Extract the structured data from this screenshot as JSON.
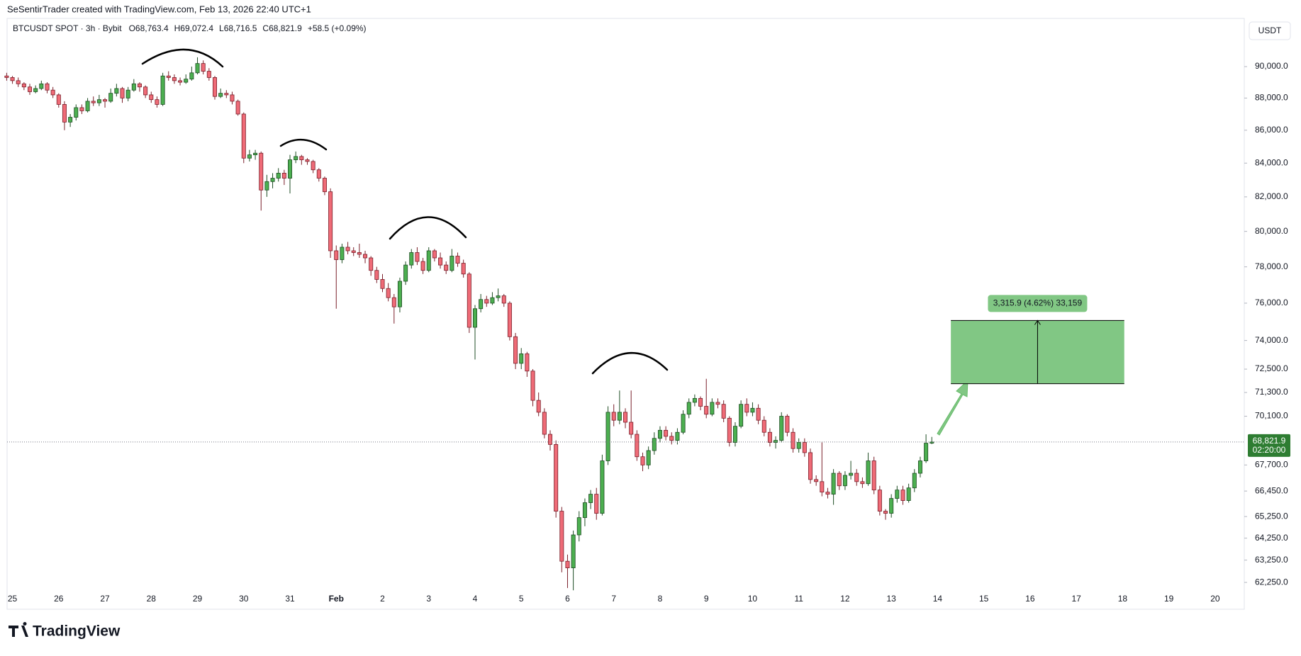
{
  "header": {
    "credit": "SeSentirTrader created with TradingView.com, Feb 13, 2026 22:40 UTC+1",
    "brand": "TradingView",
    "currency_button": "USDT"
  },
  "chart_data": {
    "type": "candlestick",
    "title": "BTCUSDT SPOT · 3h · Bybit",
    "legend_values": [
      "O68,763.4",
      "H69,072.4",
      "L68,716.5",
      "C68,821.9",
      "+58.5 (+0.09%)"
    ],
    "log_scale": true,
    "up_color": "#4caf50",
    "down_color": "#ef6b77",
    "ylim": [
      61900,
      93000
    ],
    "yticks": [
      {
        "value": 90000,
        "label": "90,000.0"
      },
      {
        "value": 88000,
        "label": "88,000.0"
      },
      {
        "value": 86000,
        "label": "86,000.0"
      },
      {
        "value": 84000,
        "label": "84,000.0"
      },
      {
        "value": 82000,
        "label": "82,000.0"
      },
      {
        "value": 80000,
        "label": "80,000.0"
      },
      {
        "value": 78000,
        "label": "78,000.0"
      },
      {
        "value": 76000,
        "label": "76,000.0"
      },
      {
        "value": 74000,
        "label": "74,000.0"
      },
      {
        "value": 72500,
        "label": "72,500.0"
      },
      {
        "value": 71300,
        "label": "71,300.0"
      },
      {
        "value": 70100,
        "label": "70,100.0"
      },
      {
        "value": 67700,
        "label": "67,700.0"
      },
      {
        "value": 66450,
        "label": "66,450.0"
      },
      {
        "value": 65250,
        "label": "65,250.0"
      },
      {
        "value": 64250,
        "label": "64,250.0"
      },
      {
        "value": 63250,
        "label": "63,250.0"
      },
      {
        "value": 62250,
        "label": "62,250.0"
      }
    ],
    "categories": [
      "25",
      "26",
      "27",
      "28",
      "29",
      "30",
      "31",
      "Feb",
      "2",
      "3",
      "4",
      "5",
      "6",
      "7",
      "8",
      "9",
      "10",
      "11",
      "12",
      "13",
      "14",
      "15",
      "16",
      "17",
      "18",
      "19",
      "20"
    ],
    "last_price_label": "68,821.9",
    "countdown": "02:20:00",
    "measure": {
      "from": 71750,
      "to": 75065.9,
      "label": "3,315.9 (4.62%) 33,159",
      "color": "#81c784"
    },
    "candles": [
      [
        89400,
        89600,
        89100,
        89300
      ],
      [
        89300,
        89400,
        88900,
        89100
      ],
      [
        89100,
        89300,
        88700,
        88900
      ],
      [
        88900,
        89000,
        88500,
        88700
      ],
      [
        88700,
        88900,
        88200,
        88400
      ],
      [
        88400,
        88800,
        88300,
        88600
      ],
      [
        88600,
        89100,
        88500,
        88900
      ],
      [
        88900,
        89000,
        88300,
        88500
      ],
      [
        88500,
        88700,
        88000,
        88200
      ],
      [
        88200,
        88300,
        87400,
        87600
      ],
      [
        87600,
        87800,
        86000,
        86500
      ],
      [
        86500,
        87000,
        86200,
        86800
      ],
      [
        86800,
        87600,
        86600,
        87400
      ],
      [
        87400,
        87600,
        87000,
        87200
      ],
      [
        87200,
        88000,
        87100,
        87800
      ],
      [
        87800,
        88100,
        87500,
        87700
      ],
      [
        87700,
        88200,
        87500,
        87900
      ],
      [
        87900,
        88000,
        87400,
        87800
      ],
      [
        87800,
        88600,
        87700,
        88300
      ],
      [
        88300,
        88900,
        88100,
        88600
      ],
      [
        88600,
        88700,
        87700,
        88000
      ],
      [
        88000,
        88700,
        87800,
        88500
      ],
      [
        88500,
        89200,
        88400,
        88900
      ],
      [
        88900,
        89000,
        88400,
        88700
      ],
      [
        88700,
        88800,
        88000,
        88200
      ],
      [
        88200,
        88400,
        87700,
        87900
      ],
      [
        87900,
        88100,
        87400,
        87600
      ],
      [
        87600,
        89600,
        87500,
        89400
      ],
      [
        89400,
        89700,
        89100,
        89300
      ],
      [
        89300,
        89500,
        88900,
        89100
      ],
      [
        89100,
        89300,
        88800,
        89000
      ],
      [
        89000,
        89500,
        88900,
        89200
      ],
      [
        89200,
        90000,
        89100,
        89600
      ],
      [
        89600,
        90600,
        89500,
        90200
      ],
      [
        90200,
        90400,
        89500,
        89700
      ],
      [
        89700,
        89900,
        89100,
        89300
      ],
      [
        89300,
        89400,
        87900,
        88100
      ],
      [
        88100,
        88600,
        88000,
        88300
      ],
      [
        88300,
        88500,
        88000,
        88200
      ],
      [
        88200,
        88400,
        87600,
        87800
      ],
      [
        87800,
        87900,
        86900,
        87000
      ],
      [
        87000,
        87100,
        84000,
        84300
      ],
      [
        84300,
        84800,
        84100,
        84500
      ],
      [
        84500,
        84800,
        84200,
        84600
      ],
      [
        84600,
        84700,
        81200,
        82400
      ],
      [
        82400,
        83300,
        82000,
        82900
      ],
      [
        82900,
        83400,
        82500,
        83100
      ],
      [
        83100,
        83700,
        82900,
        83400
      ],
      [
        83400,
        83600,
        82700,
        83100
      ],
      [
        83100,
        84500,
        82200,
        84200
      ],
      [
        84200,
        84700,
        84000,
        84400
      ],
      [
        84400,
        84500,
        83900,
        84200
      ],
      [
        84200,
        84300,
        83900,
        84100
      ],
      [
        84100,
        84200,
        83400,
        83600
      ],
      [
        83600,
        83700,
        82900,
        83100
      ],
      [
        83100,
        83200,
        82100,
        82300
      ],
      [
        82300,
        82500,
        78500,
        78900
      ],
      [
        78900,
        79200,
        75700,
        78400
      ],
      [
        78400,
        79300,
        78200,
        79100
      ],
      [
        79100,
        79400,
        78700,
        78900
      ],
      [
        78900,
        79100,
        78600,
        78800
      ],
      [
        78800,
        79300,
        78500,
        78700
      ],
      [
        78700,
        78900,
        78200,
        78500
      ],
      [
        78500,
        78600,
        77500,
        77800
      ],
      [
        77800,
        78000,
        77100,
        77300
      ],
      [
        77300,
        77600,
        76600,
        76800
      ],
      [
        76800,
        77100,
        76100,
        76300
      ],
      [
        76300,
        76500,
        74900,
        75800
      ],
      [
        75800,
        77400,
        75500,
        77200
      ],
      [
        77200,
        78300,
        77000,
        78100
      ],
      [
        78100,
        79000,
        77900,
        78800
      ],
      [
        78800,
        79100,
        78100,
        78300
      ],
      [
        78300,
        78500,
        77600,
        77800
      ],
      [
        77800,
        79100,
        77700,
        78900
      ],
      [
        78900,
        79000,
        78300,
        78500
      ],
      [
        78500,
        78800,
        77900,
        78100
      ],
      [
        78100,
        78300,
        77600,
        77800
      ],
      [
        77800,
        79000,
        77700,
        78600
      ],
      [
        78600,
        78800,
        78000,
        78200
      ],
      [
        78200,
        78400,
        77400,
        77600
      ],
      [
        77600,
        77700,
        74400,
        74700
      ],
      [
        74700,
        75900,
        73000,
        75700
      ],
      [
        75700,
        76500,
        75500,
        76200
      ],
      [
        76200,
        76400,
        75800,
        76000
      ],
      [
        76000,
        76600,
        75900,
        76300
      ],
      [
        76300,
        76800,
        76100,
        76400
      ],
      [
        76400,
        76500,
        75800,
        76000
      ],
      [
        76000,
        76100,
        74000,
        74200
      ],
      [
        74200,
        74400,
        72500,
        72800
      ],
      [
        72800,
        73600,
        72500,
        73300
      ],
      [
        73300,
        73400,
        72100,
        72400
      ],
      [
        72400,
        72500,
        70600,
        70900
      ],
      [
        70900,
        71300,
        70100,
        70300
      ],
      [
        70300,
        70500,
        69000,
        69200
      ],
      [
        69200,
        69400,
        68400,
        68700
      ],
      [
        68700,
        68900,
        65200,
        65500
      ],
      [
        65500,
        65700,
        62700,
        63200
      ],
      [
        63200,
        63500,
        62000,
        62900
      ],
      [
        62900,
        64600,
        61900,
        64400
      ],
      [
        64400,
        65500,
        64100,
        65200
      ],
      [
        65200,
        66100,
        64800,
        65900
      ],
      [
        65900,
        66500,
        65600,
        66300
      ],
      [
        66300,
        66600,
        65100,
        65400
      ],
      [
        65400,
        68200,
        65300,
        67900
      ],
      [
        67900,
        70600,
        67700,
        70300
      ],
      [
        70300,
        70700,
        69600,
        69900
      ],
      [
        69900,
        71400,
        69700,
        70300
      ],
      [
        70300,
        70500,
        69500,
        69800
      ],
      [
        69800,
        71400,
        69000,
        69200
      ],
      [
        69200,
        69400,
        67900,
        68100
      ],
      [
        68100,
        68300,
        67400,
        67700
      ],
      [
        67700,
        68600,
        67500,
        68400
      ],
      [
        68400,
        69300,
        68200,
        69000
      ],
      [
        69000,
        69600,
        68800,
        69400
      ],
      [
        69400,
        69600,
        68900,
        69100
      ],
      [
        69100,
        69300,
        68700,
        68900
      ],
      [
        68900,
        69500,
        68700,
        69300
      ],
      [
        69300,
        70400,
        69200,
        70200
      ],
      [
        70200,
        71000,
        70000,
        70800
      ],
      [
        70800,
        71200,
        70600,
        71000
      ],
      [
        71000,
        71100,
        70400,
        70600
      ],
      [
        70600,
        72000,
        70000,
        70200
      ],
      [
        70200,
        71000,
        70100,
        70800
      ],
      [
        70800,
        71000,
        70500,
        70700
      ],
      [
        70700,
        70900,
        69800,
        70000
      ],
      [
        70000,
        70100,
        68600,
        68800
      ],
      [
        68800,
        69800,
        68600,
        69600
      ],
      [
        69600,
        70900,
        69500,
        70700
      ],
      [
        70700,
        71000,
        70100,
        70300
      ],
      [
        70300,
        70800,
        70100,
        70500
      ],
      [
        70500,
        70700,
        69700,
        69900
      ],
      [
        69900,
        70100,
        69100,
        69300
      ],
      [
        69300,
        69500,
        68600,
        68800
      ],
      [
        68800,
        69100,
        68500,
        68900
      ],
      [
        68900,
        70300,
        68800,
        70100
      ],
      [
        70100,
        70200,
        69100,
        69300
      ],
      [
        69300,
        69500,
        68300,
        68500
      ],
      [
        68500,
        69000,
        68300,
        68800
      ],
      [
        68800,
        69000,
        68100,
        68300
      ],
      [
        68300,
        68500,
        66800,
        67000
      ],
      [
        67000,
        67200,
        66700,
        66900
      ],
      [
        66900,
        68800,
        66200,
        66400
      ],
      [
        66400,
        66600,
        66100,
        66300
      ],
      [
        66300,
        67500,
        65800,
        67300
      ],
      [
        67300,
        67400,
        66500,
        66700
      ],
      [
        66700,
        67400,
        66500,
        67200
      ],
      [
        67200,
        67900,
        67000,
        67300
      ],
      [
        67300,
        67500,
        66700,
        66900
      ],
      [
        66900,
        67100,
        66600,
        66800
      ],
      [
        66800,
        68300,
        66700,
        67900
      ],
      [
        67900,
        68100,
        66300,
        66500
      ],
      [
        66500,
        66700,
        65300,
        65500
      ],
      [
        65500,
        65600,
        65100,
        65400
      ],
      [
        65400,
        66300,
        65200,
        66100
      ],
      [
        66100,
        66700,
        65900,
        66500
      ],
      [
        66500,
        66700,
        65800,
        66000
      ],
      [
        66000,
        66800,
        65900,
        66600
      ],
      [
        66600,
        67500,
        66400,
        67300
      ],
      [
        67300,
        68100,
        67100,
        67900
      ],
      [
        67900,
        69200,
        67800,
        68763.4
      ],
      [
        68763.4,
        69072.4,
        68716.5,
        68821.9
      ]
    ]
  }
}
